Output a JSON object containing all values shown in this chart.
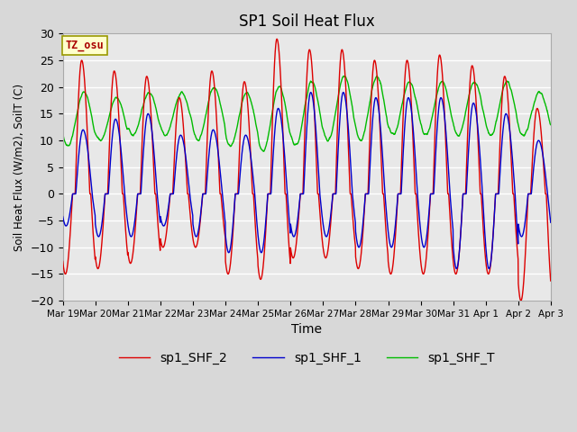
{
  "title": "SP1 Soil Heat Flux",
  "xlabel": "Time",
  "ylabel": "Soil Heat Flux (W/m2), SoilT (C)",
  "ylim": [
    -20,
    30
  ],
  "x_tick_labels": [
    "Mar 19",
    "Mar 20",
    "Mar 21",
    "Mar 22",
    "Mar 23",
    "Mar 24",
    "Mar 25",
    "Mar 26",
    "Mar 27",
    "Mar 28",
    "Mar 29",
    "Mar 30",
    "Mar 31",
    "Apr 1",
    "Apr 2",
    "Apr 3"
  ],
  "tz_label": "TZ_osu",
  "legend": [
    "sp1_SHF_2",
    "sp1_SHF_1",
    "sp1_SHF_T"
  ],
  "colors": {
    "sp1_SHF_2": "#dd0000",
    "sp1_SHF_1": "#0000cc",
    "sp1_SHF_T": "#00bb00"
  },
  "fig_bg": "#d8d8d8",
  "plot_bg": "#e8e8e8",
  "grid_color": "#ffffff",
  "n_days": 15,
  "points_per_day": 144,
  "shf2_day_amps": [
    25,
    23,
    22,
    18,
    23,
    21,
    29,
    27,
    27,
    25,
    25,
    26,
    24,
    22,
    16
  ],
  "shf2_night_amps": [
    15,
    14,
    13,
    10,
    10,
    15,
    16,
    12,
    12,
    14,
    15,
    15,
    15,
    15,
    20
  ],
  "shf1_day_amps": [
    12,
    14,
    15,
    11,
    12,
    11,
    16,
    19,
    19,
    18,
    18,
    18,
    17,
    15,
    10
  ],
  "shf1_night_amps": [
    6,
    8,
    8,
    6,
    8,
    11,
    11,
    8,
    8,
    10,
    10,
    10,
    14,
    14,
    8
  ],
  "shfT_mean": [
    14,
    14,
    15,
    15,
    15,
    14,
    14,
    15,
    16,
    16,
    16,
    16,
    16,
    16,
    15
  ],
  "shfT_amp": [
    5,
    4,
    4,
    4,
    5,
    5,
    6,
    6,
    6,
    6,
    5,
    5,
    5,
    5,
    4
  ]
}
